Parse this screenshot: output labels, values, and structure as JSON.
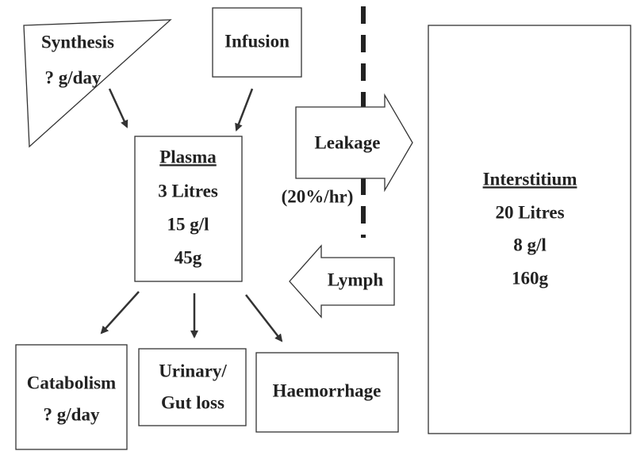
{
  "nodes": {
    "synthesis": {
      "lines": [
        "Synthesis",
        "? g/day"
      ]
    },
    "infusion": {
      "label": "Infusion"
    },
    "plasma": {
      "title": "Plasma",
      "lines": [
        "3 Litres",
        "15 g/l",
        "45g"
      ]
    },
    "leakage": {
      "label": "Leakage",
      "rate": "(20%/hr)"
    },
    "lymph": {
      "label": "Lymph"
    },
    "interstitium": {
      "title": "Interstitium",
      "lines": [
        "20 Litres",
        "8 g/l",
        "160g"
      ]
    },
    "catabolism": {
      "lines": [
        "Catabolism",
        "? g/day"
      ]
    },
    "urinary": {
      "lines": [
        "Urinary/",
        "Gut loss"
      ]
    },
    "haemorrhage": {
      "label": "Haemorrhage"
    }
  }
}
